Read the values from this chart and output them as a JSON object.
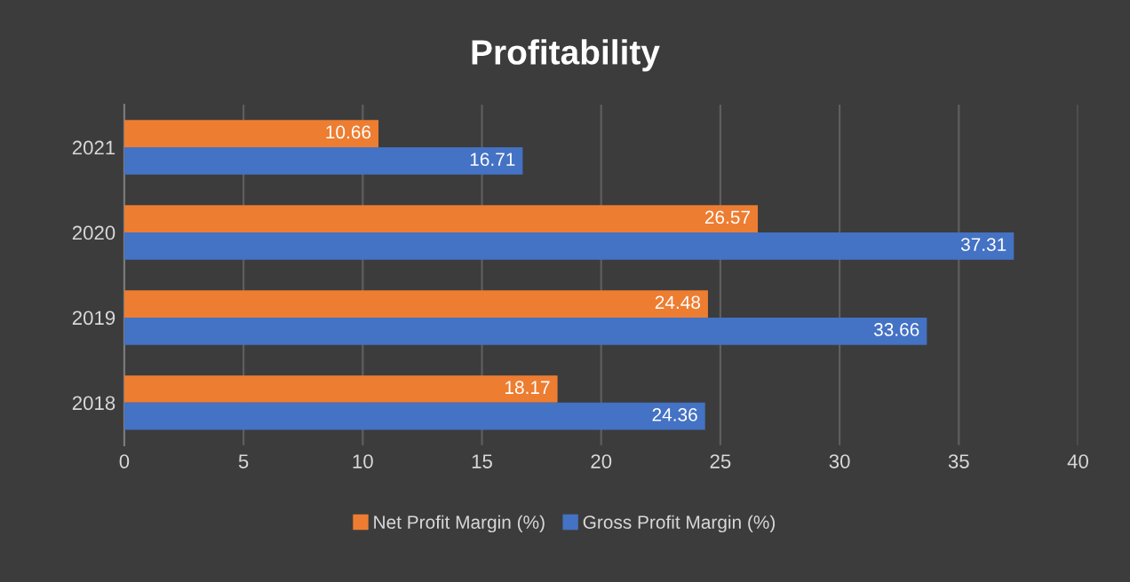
{
  "chart_data": {
    "type": "bar",
    "orientation": "horizontal",
    "title": "Profitability",
    "categories": [
      "2021",
      "2020",
      "2019",
      "2018"
    ],
    "series": [
      {
        "name": "Net Profit Margin (%)",
        "color": "#ed7d31",
        "values": [
          10.66,
          26.57,
          24.48,
          18.17
        ]
      },
      {
        "name": "Gross Profit Margin (%)",
        "color": "#4472c4",
        "values": [
          16.71,
          37.31,
          33.66,
          24.36
        ]
      }
    ],
    "xlim": [
      0,
      40
    ],
    "xticks": [
      0,
      5,
      10,
      15,
      20,
      25,
      30,
      35,
      40
    ],
    "grid": "x",
    "legend": "bottom",
    "data_labels": true
  }
}
